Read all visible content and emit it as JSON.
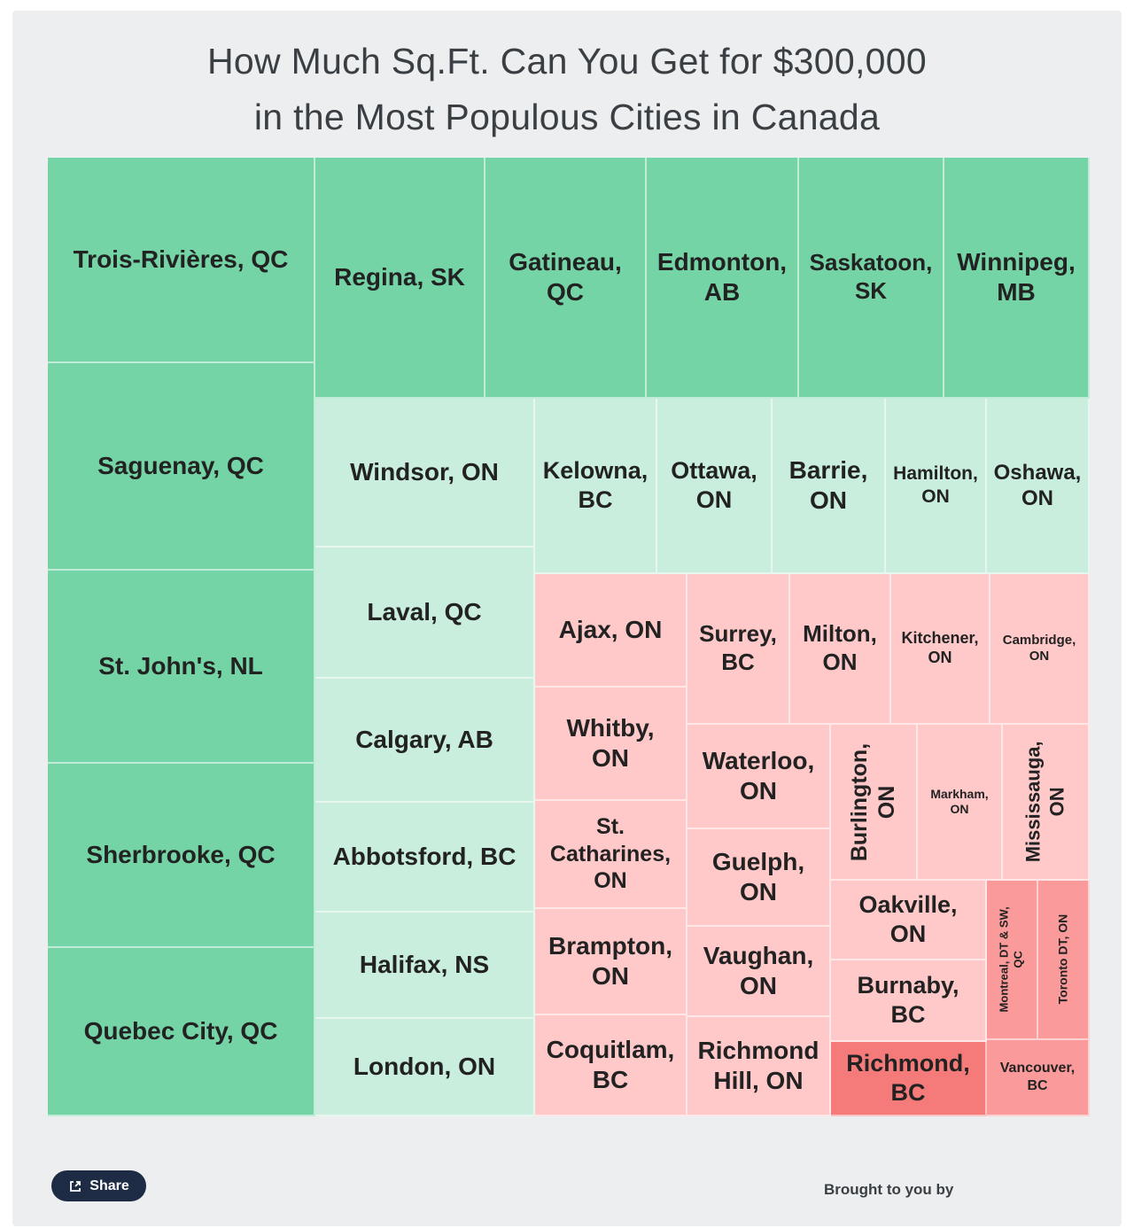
{
  "title": {
    "line1": "How Much Sq.Ft. Can You Get for $300,000",
    "line2": "in the Most Populous Cities in Canada"
  },
  "colors": {
    "high": "#74d4a6",
    "mid": "#c9eedd",
    "low": "#ffc9c9",
    "lower": "#fa9a9a",
    "lowest": "#f47b79"
  },
  "chart_data": {
    "type": "treemap",
    "tiles": [
      {
        "label": "Trois-Rivières, QC",
        "tier": "high"
      },
      {
        "label": "Saguenay, QC",
        "tier": "high"
      },
      {
        "label": "St. John's, NL",
        "tier": "high"
      },
      {
        "label": "Sherbrooke, QC",
        "tier": "high"
      },
      {
        "label": "Quebec City, QC",
        "tier": "high"
      },
      {
        "label": "Regina, SK",
        "tier": "high"
      },
      {
        "label": "Gatineau,\nQC",
        "tier": "high"
      },
      {
        "label": "Edmonton,\nAB",
        "tier": "high"
      },
      {
        "label": "Saskatoon,\nSK",
        "tier": "high"
      },
      {
        "label": "Winnipeg,\nMB",
        "tier": "high"
      },
      {
        "label": "Windsor, ON",
        "tier": "mid"
      },
      {
        "label": "Laval, QC",
        "tier": "mid"
      },
      {
        "label": "Calgary, AB",
        "tier": "mid"
      },
      {
        "label": "Abbotsford, BC",
        "tier": "mid"
      },
      {
        "label": "Halifax, NS",
        "tier": "mid"
      },
      {
        "label": "London, ON",
        "tier": "mid"
      },
      {
        "label": "Kelowna,\nBC",
        "tier": "mid"
      },
      {
        "label": "Ottawa,\nON",
        "tier": "mid"
      },
      {
        "label": "Barrie,\nON",
        "tier": "mid"
      },
      {
        "label": "Hamilton,\nON",
        "tier": "mid"
      },
      {
        "label": "Oshawa,\nON",
        "tier": "mid"
      },
      {
        "label": "Ajax, ON",
        "tier": "low"
      },
      {
        "label": "Whitby,\nON",
        "tier": "low"
      },
      {
        "label": "St.\nCatharines,\nON",
        "tier": "low"
      },
      {
        "label": "Brampton,\nON",
        "tier": "low"
      },
      {
        "label": "Coquitlam,\nBC",
        "tier": "low"
      },
      {
        "label": "Surrey,\nBC",
        "tier": "low"
      },
      {
        "label": "Milton,\nON",
        "tier": "low"
      },
      {
        "label": "Kitchener,\nON",
        "tier": "low"
      },
      {
        "label": "Cambridge,\nON",
        "tier": "low"
      },
      {
        "label": "Waterloo,\nON",
        "tier": "low"
      },
      {
        "label": "Guelph,\nON",
        "tier": "low"
      },
      {
        "label": "Vaughan,\nON",
        "tier": "low"
      },
      {
        "label": "Richmond\nHill, ON",
        "tier": "low"
      },
      {
        "label": "Burlington,\nON",
        "tier": "low"
      },
      {
        "label": "Markham,\nON",
        "tier": "low"
      },
      {
        "label": "Mississauga,\nON",
        "tier": "low"
      },
      {
        "label": "Oakville,\nON",
        "tier": "low"
      },
      {
        "label": "Burnaby,\nBC",
        "tier": "low"
      },
      {
        "label": "Richmond,\nBC",
        "tier": "lowest"
      },
      {
        "label": "Montreal, DT & SW,\nQC",
        "tier": "lower"
      },
      {
        "label": "Toronto DT, ON",
        "tier": "lower"
      },
      {
        "label": "Vancouver,\nBC",
        "tier": "lower"
      }
    ]
  },
  "share": {
    "label": "Share",
    "icon": "share-icon"
  },
  "credit": "Brought to you by"
}
